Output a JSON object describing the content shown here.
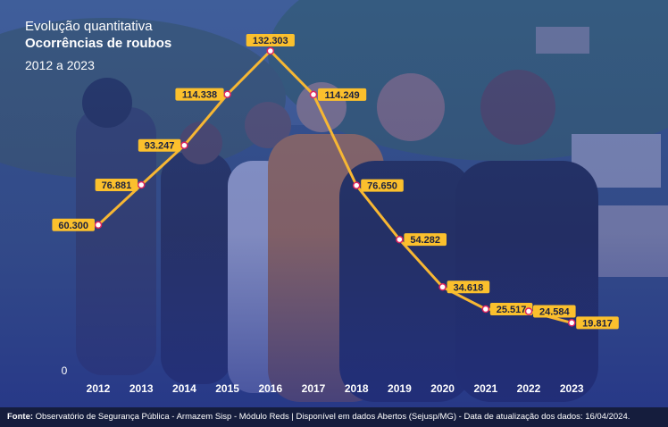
{
  "header": {
    "line1": "Evolução quantitativa",
    "line2": "Ocorrências de roubos",
    "line3": "2012 a 2023"
  },
  "footer": {
    "source_label": "Fonte:",
    "source_text": " Observatório de Segurança Pública - Armazem Sisp - Módulo Reds | Disponível em dados Abertos (Sejusp/MG) - Data de atualização dos dados: 16/04/2024."
  },
  "colors": {
    "line": "#f7b733",
    "label_bg": "#fbc02d",
    "overlay": "#1f3c9c",
    "text": "#ffffff"
  },
  "chart_data": {
    "type": "line",
    "categories": [
      "2012",
      "2013",
      "2014",
      "2015",
      "2016",
      "2017",
      "2018",
      "2019",
      "2020",
      "2021",
      "2022",
      "2023"
    ],
    "values": [
      60300,
      76881,
      93247,
      114338,
      132303,
      114249,
      76650,
      54282,
      34618,
      25517,
      24584,
      19817
    ],
    "data_labels": [
      "60.300",
      "76.881",
      "93.247",
      "114.338",
      "132.303",
      "114.249",
      "76.650",
      "54.282",
      "34.618",
      "25.517",
      "24.584",
      "19.817"
    ],
    "y_tick_label": "0",
    "title": "Ocorrências de roubos",
    "subtitle": "2012 a 2023",
    "ylim": [
      0,
      132303
    ]
  }
}
